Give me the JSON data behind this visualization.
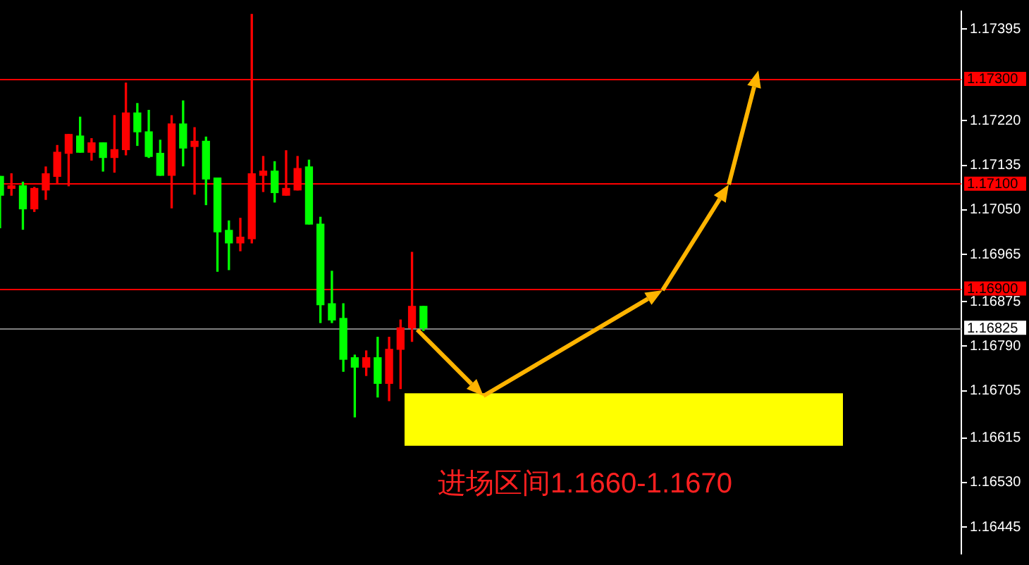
{
  "chart_data": {
    "type": "candlestick",
    "categories": [
      null,
      null,
      null,
      null,
      null,
      null,
      null,
      null,
      null,
      null,
      null,
      null,
      null,
      null,
      null,
      null,
      null,
      null,
      null,
      null,
      null,
      null,
      null,
      null,
      null,
      null,
      null,
      null,
      null,
      null,
      null,
      null,
      null,
      null,
      null,
      null,
      null,
      null,
      null,
      null,
      null,
      null,
      null,
      null,
      null,
      null,
      null,
      null,
      null,
      null,
      null,
      null,
      null,
      null,
      null,
      null,
      null,
      null,
      null,
      null,
      null,
      null,
      null,
      null,
      null,
      null,
      null,
      null,
      null,
      null,
      null,
      null,
      null,
      null,
      null,
      null,
      null,
      null,
      null,
      null,
      null,
      null,
      null,
      null,
      null
    ],
    "ohlc": [
      [
        1.17114,
        1.17114,
        1.17016,
        1.17078
      ],
      [
        1.17091,
        1.17119,
        1.17078,
        1.17096
      ],
      [
        1.17096,
        1.17103,
        1.17013,
        1.17052
      ],
      [
        1.17052,
        1.17093,
        1.17047,
        1.17091
      ],
      [
        1.17088,
        1.17132,
        1.1707,
        1.17119
      ],
      [
        1.17114,
        1.17173,
        1.17101,
        1.1716
      ],
      [
        1.17158,
        1.17194,
        1.17096,
        1.17194
      ],
      [
        1.17191,
        1.17227,
        1.1716,
        1.1716
      ],
      [
        1.1716,
        1.17186,
        1.17145,
        1.17178
      ],
      [
        1.17178,
        1.17178,
        1.17124,
        1.1715
      ],
      [
        1.1715,
        1.1723,
        1.17122,
        1.17165
      ],
      [
        1.17165,
        1.17292,
        1.17155,
        1.17235
      ],
      [
        1.17235,
        1.17253,
        1.17173,
        1.17199
      ],
      [
        1.17199,
        1.1724,
        1.1715,
        1.17152
      ],
      [
        1.17158,
        1.17183,
        1.17116,
        1.17116
      ],
      [
        1.17116,
        1.1723,
        1.17054,
        1.17214
      ],
      [
        1.17214,
        1.17258,
        1.17134,
        1.17168
      ],
      [
        1.17171,
        1.17207,
        1.1708,
        1.17181
      ],
      [
        1.17181,
        1.17189,
        1.1706,
        1.17109
      ],
      [
        1.17111,
        1.17111,
        1.16933,
        1.17008
      ],
      [
        1.17011,
        1.17029,
        1.16936,
        1.16987
      ],
      [
        1.16987,
        1.17034,
        1.16972,
        1.16998
      ],
      [
        1.16995,
        1.17423,
        1.16987,
        1.17119
      ],
      [
        1.17116,
        1.17152,
        1.17085,
        1.17124
      ],
      [
        1.17124,
        1.17142,
        1.17065,
        1.17083
      ],
      [
        1.17078,
        1.17163,
        1.17078,
        1.17091
      ],
      [
        1.17088,
        1.17152,
        1.17088,
        1.17129
      ],
      [
        1.17132,
        1.17145,
        1.17023,
        1.17023
      ],
      [
        1.17023,
        1.17036,
        1.16835,
        1.16869
      ],
      [
        1.16871,
        1.16933,
        1.16835,
        1.1684
      ],
      [
        1.16843,
        1.16871,
        1.16742,
        1.16765
      ],
      [
        1.16768,
        1.16773,
        1.16655,
        1.1675
      ],
      [
        1.1675,
        1.16781,
        1.16734,
        1.16768
      ],
      [
        1.16768,
        1.16807,
        1.16693,
        1.16719
      ],
      [
        1.16719,
        1.16807,
        1.16686,
        1.16784
      ],
      [
        1.16784,
        1.1684,
        1.16709,
        1.16825
      ],
      [
        1.16825,
        1.16969,
        1.16799,
        1.16866
      ],
      [
        1.16866,
        1.16866,
        1.1682,
        1.16825
      ],
      null,
      null,
      null,
      null,
      null,
      null,
      null,
      null,
      null,
      null,
      null,
      null,
      null,
      null,
      null,
      null,
      null,
      null,
      null,
      null,
      null,
      null,
      null,
      null,
      null,
      null,
      null,
      null,
      null,
      null,
      null,
      null,
      null,
      null,
      null,
      null,
      null,
      null,
      null,
      null,
      null,
      null,
      null,
      null,
      null,
      null,
      null
    ],
    "colors": [
      "#00ff00",
      "#ff0000",
      "#00ff00",
      "#ff0000",
      "#ff0000",
      "#ff0000",
      "#ff0000",
      "#00ff00",
      "#ff0000",
      "#00ff00",
      "#ff0000",
      "#ff0000",
      "#00ff00",
      "#00ff00",
      "#00ff00",
      "#ff0000",
      "#00ff00",
      "#ff0000",
      "#00ff00",
      "#00ff00",
      "#00ff00",
      "#ff0000",
      "#ff0000",
      "#ff0000",
      "#00ff00",
      "#ff0000",
      "#ff0000",
      "#00ff00",
      "#00ff00",
      "#00ff00",
      "#00ff00",
      "#00ff00",
      "#ff0000",
      "#00ff00",
      "#ff0000",
      "#ff0000",
      "#ff0000",
      "#00ff00",
      null,
      null,
      null,
      null,
      null,
      null,
      null,
      null,
      null,
      null,
      null,
      null,
      null,
      null,
      null,
      null,
      null,
      null,
      null,
      null,
      null,
      null,
      null,
      null,
      null,
      null,
      null,
      null,
      null,
      null,
      null,
      null,
      null,
      null,
      null,
      null,
      null,
      null,
      null,
      null,
      null,
      null,
      null,
      null,
      null,
      null,
      null
    ],
    "ylim": [
      1.16394,
      1.17429
    ],
    "yticks": [
      {
        "value": 1.17395,
        "label": "1.17395"
      },
      {
        "value": 1.1722,
        "label": "1.17220"
      },
      {
        "value": 1.17135,
        "label": "1.17135"
      },
      {
        "value": 1.1705,
        "label": "1.17050"
      },
      {
        "value": 1.16965,
        "label": "1.16965"
      },
      {
        "value": 1.16875,
        "label": "1.16875"
      },
      {
        "value": 1.1679,
        "label": "1.16790"
      },
      {
        "value": 1.16705,
        "label": "1.16705"
      },
      {
        "value": 1.16615,
        "label": "1.16615"
      },
      {
        "value": 1.1653,
        "label": "1.16530"
      },
      {
        "value": 1.16445,
        "label": "1.16445"
      }
    ],
    "tick_labels": "y",
    "ref_lines": [
      {
        "axis": "y",
        "value": 1.173,
        "label": "1.17300",
        "color": "#ff0000"
      },
      {
        "axis": "y",
        "value": 1.171,
        "label": "1.17100",
        "color": "#ff0000"
      },
      {
        "axis": "y",
        "value": 1.169,
        "label": "1.16900",
        "color": "#ff0000"
      },
      {
        "axis": "y",
        "value": 1.16825,
        "label": "1.16825",
        "color": "#808080"
      }
    ],
    "bands": [
      {
        "axis": "y",
        "from": 1.166,
        "to": 1.167,
        "color": "#ffff00"
      }
    ],
    "annotations": [
      "进场区间1.1660-1.1670"
    ]
  }
}
